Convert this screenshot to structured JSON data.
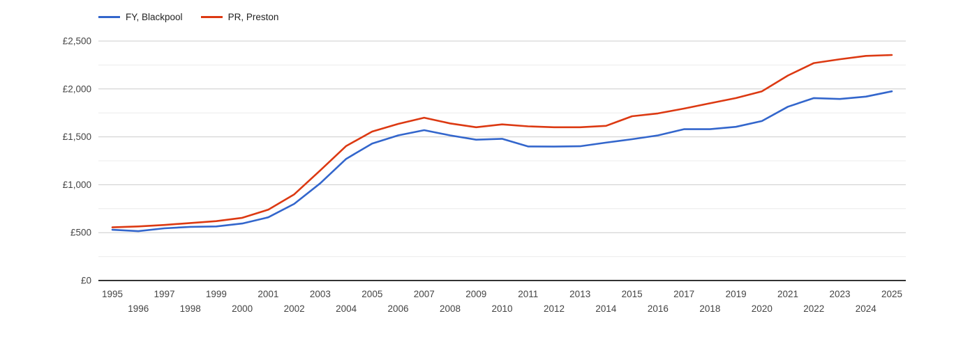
{
  "chart_data": {
    "type": "line",
    "title": "",
    "xlabel": "",
    "ylabel": "",
    "currency_prefix": "£",
    "x": [
      1995,
      1996,
      1997,
      1998,
      1999,
      2000,
      2001,
      2002,
      2003,
      2004,
      2005,
      2006,
      2007,
      2008,
      2009,
      2010,
      2011,
      2012,
      2013,
      2014,
      2015,
      2016,
      2017,
      2018,
      2019,
      2020,
      2021,
      2022,
      2023,
      2024,
      2025
    ],
    "series": [
      {
        "name": "FY, Blackpool",
        "color": "#3366cc",
        "values": [
          530,
          515,
          545,
          560,
          565,
          595,
          660,
          800,
          1015,
          1270,
          1430,
          1515,
          1570,
          1515,
          1470,
          1480,
          1400,
          1398,
          1402,
          1440,
          1475,
          1515,
          1580,
          1580,
          1605,
          1665,
          1815,
          1905,
          1895,
          1920,
          1975
        ]
      },
      {
        "name": "PR, Preston",
        "color": "#dc3912",
        "values": [
          555,
          565,
          580,
          600,
          620,
          655,
          740,
          900,
          1150,
          1405,
          1555,
          1635,
          1700,
          1640,
          1600,
          1630,
          1610,
          1600,
          1600,
          1615,
          1715,
          1745,
          1795,
          1850,
          1905,
          1975,
          2140,
          2270,
          2310,
          2345,
          2355
        ]
      }
    ],
    "ylim": [
      0,
      2500
    ],
    "xlim": [
      1995,
      2025
    ],
    "y_major_ticks": [
      0,
      500,
      1000,
      1500,
      2000,
      2500
    ],
    "y_tick_labels": [
      "£0",
      "£500",
      "£1,000",
      "£1,500",
      "£2,000",
      "£2,500"
    ],
    "y_minor_ticks": [
      250,
      750,
      1250,
      1750,
      2250
    ],
    "grid": true,
    "legend_position": "top-left",
    "colors": {
      "major_gridline": "#cccccc",
      "minor_gridline": "#ebebeb",
      "axis_baseline": "#333333",
      "tick_label": "#444444",
      "legend_text": "#222222",
      "background": "#ffffff"
    }
  }
}
